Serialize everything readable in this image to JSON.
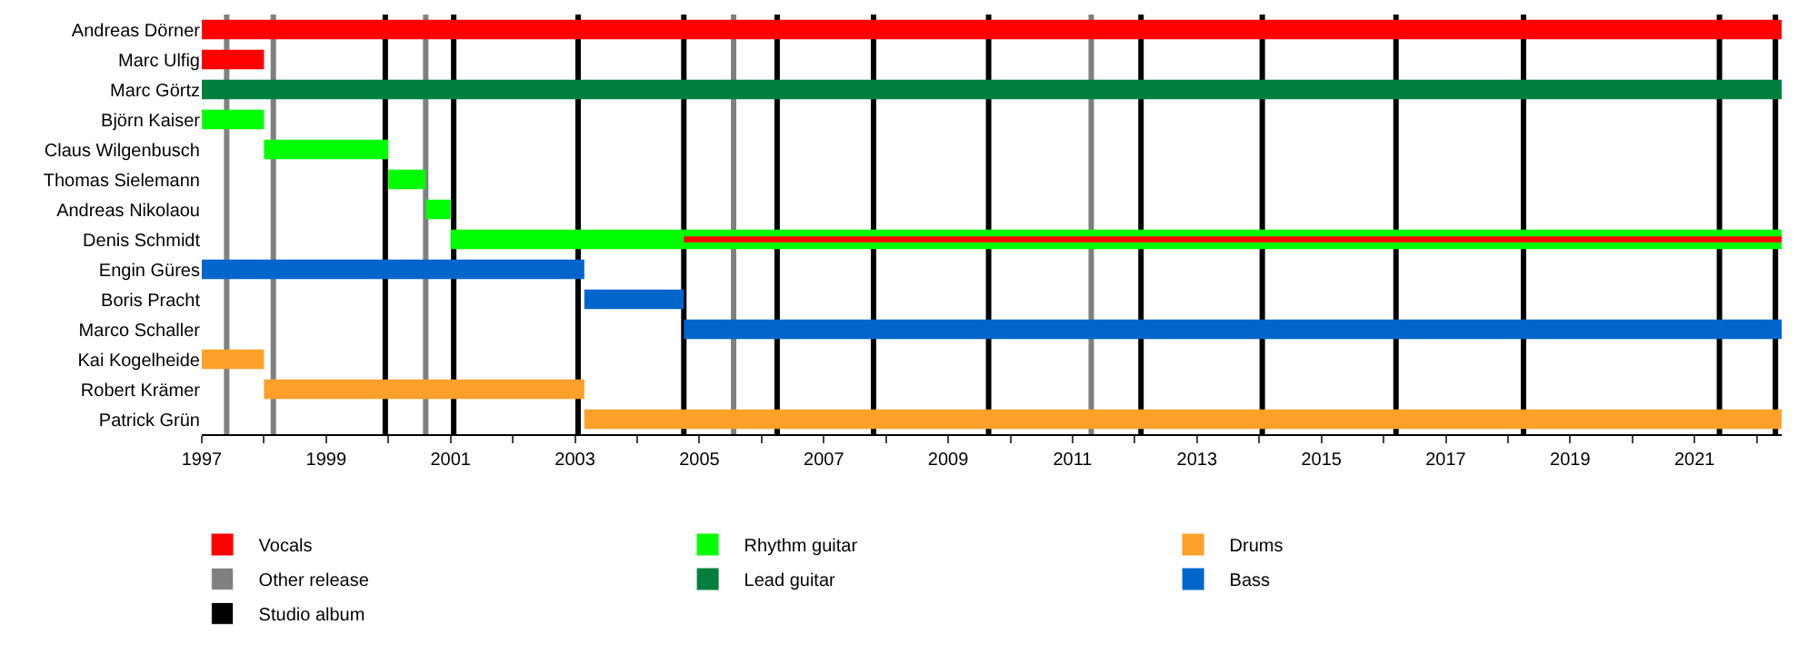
{
  "chart_data": {
    "type": "bar",
    "orientation": "horizontal",
    "categories": [
      "Andreas Dörner",
      "Marc Ulfig",
      "Marc Görtz",
      "Björn Kaiser",
      "Claus Wilgenbusch",
      "Thomas Sielemann",
      "Andreas Nikolaou",
      "Denis Schmidt",
      "Engin Güres",
      "Boris Pracht",
      "Marco Schaller",
      "Kai Kogelheide",
      "Robert Krämer",
      "Patrick Grün"
    ],
    "series": [
      {
        "name": "Rhythm guitar",
        "color": "#00ff00",
        "values": [
          null,
          null,
          null,
          1.0,
          2.0,
          0.6,
          0.4,
          21.4,
          null,
          null,
          null,
          null,
          null,
          null
        ],
        "base": [
          null,
          null,
          null,
          1997,
          1998,
          2000,
          2000.6,
          2001,
          null,
          null,
          null,
          null,
          null,
          null
        ]
      },
      {
        "name": "Lead guitar",
        "color": "#007f3f",
        "values": [
          null,
          null,
          25.4,
          null,
          null,
          null,
          null,
          null,
          null,
          null,
          null,
          null,
          null,
          null
        ],
        "base": [
          null,
          null,
          1997,
          null,
          null,
          null,
          null,
          null,
          null,
          null,
          null,
          null,
          null,
          null
        ]
      },
      {
        "name": "Bass",
        "color": "#0066cc",
        "values": [
          null,
          null,
          null,
          null,
          null,
          null,
          null,
          null,
          6.15,
          1.6,
          17.65,
          null,
          null,
          null
        ],
        "base": [
          null,
          null,
          null,
          null,
          null,
          null,
          null,
          null,
          1997,
          2003.15,
          2004.75,
          null,
          null,
          null
        ]
      },
      {
        "name": "Drums",
        "color": "#ffa02a",
        "values": [
          null,
          null,
          null,
          null,
          null,
          null,
          null,
          null,
          null,
          null,
          null,
          1.0,
          5.15,
          19.25
        ],
        "base": [
          null,
          null,
          null,
          null,
          null,
          null,
          null,
          null,
          null,
          null,
          null,
          1997,
          1998,
          2003.15
        ]
      },
      {
        "name": "Vocals",
        "color": "#ff0000",
        "values": [
          25.4,
          1.0,
          null,
          null,
          null,
          null,
          null,
          17.65,
          null,
          null,
          null,
          null,
          null,
          null
        ],
        "base": [
          1997,
          1997,
          null,
          null,
          null,
          null,
          null,
          2004.75,
          null,
          null,
          null,
          null,
          null,
          null
        ]
      }
    ],
    "xlim": [
      1997,
      2022.4
    ],
    "xticks": [
      1997,
      {
        "value": 1998,
        "label": null
      },
      1999,
      {
        "value": 2000,
        "label": null
      },
      2001,
      {
        "value": 2002,
        "label": null
      },
      2003,
      {
        "value": 2004,
        "label": null
      },
      2005,
      {
        "value": 2006,
        "label": null
      },
      2007,
      {
        "value": 2008,
        "label": null
      },
      2009,
      {
        "value": 2010,
        "label": null
      },
      2011,
      {
        "value": 2012,
        "label": null
      },
      2013,
      {
        "value": 2014,
        "label": null
      },
      2015,
      {
        "value": 2016,
        "label": null
      },
      2017,
      {
        "value": 2018,
        "label": null
      },
      2019,
      {
        "value": 2020,
        "label": null
      },
      2021,
      {
        "value": 2022,
        "label": null
      }
    ],
    "ref_lines": [
      {
        "axis": "x",
        "value": 1999.95,
        "label": "Studio album",
        "color": "#000000"
      },
      {
        "axis": "x",
        "value": 2001.05,
        "color": "#000000"
      },
      {
        "axis": "x",
        "value": 2003.05,
        "color": "#000000"
      },
      {
        "axis": "x",
        "value": 2004.75,
        "color": "#000000"
      },
      {
        "axis": "x",
        "value": 2006.25,
        "color": "#000000"
      },
      {
        "axis": "x",
        "value": 2007.8,
        "color": "#000000"
      },
      {
        "axis": "x",
        "value": 2009.65,
        "color": "#000000"
      },
      {
        "axis": "x",
        "value": 2012.1,
        "color": "#000000"
      },
      {
        "axis": "x",
        "value": 2014.05,
        "color": "#000000"
      },
      {
        "axis": "x",
        "value": 2016.2,
        "color": "#000000"
      },
      {
        "axis": "x",
        "value": 2018.25,
        "color": "#000000"
      },
      {
        "axis": "x",
        "value": 2021.4,
        "color": "#000000"
      },
      {
        "axis": "x",
        "value": 2022.3,
        "color": "#000000"
      },
      {
        "axis": "x",
        "value": 1997.4,
        "label": "Other release",
        "color": "#808080"
      },
      {
        "axis": "x",
        "value": 1998.15,
        "color": "#808080"
      },
      {
        "axis": "x",
        "value": 2000.6,
        "color": "#808080"
      },
      {
        "axis": "x",
        "value": 2005.55,
        "color": "#808080"
      },
      {
        "axis": "x",
        "value": 2011.3,
        "color": "#808080"
      }
    ],
    "legend": "bottom",
    "grid": false
  }
}
